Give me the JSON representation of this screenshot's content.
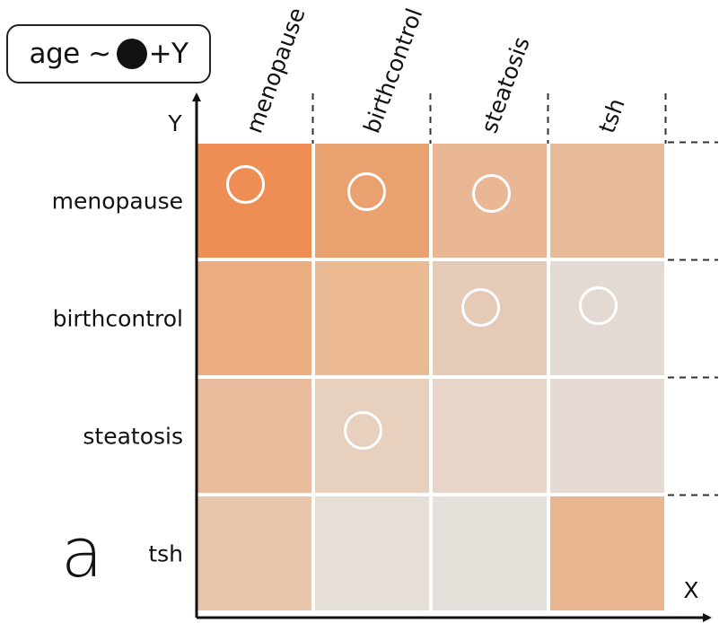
{
  "formula": {
    "prefix": "age ~",
    "suffix": "+Y"
  },
  "panel_label": "a",
  "chart_data": {
    "type": "heatmap",
    "xlabel": "X",
    "ylabel": "Y",
    "columns": [
      "menopause",
      "birthcontrol",
      "steatosis",
      "tsh"
    ],
    "rows": [
      "menopause",
      "birthcontrol",
      "steatosis",
      "tsh"
    ],
    "cell_colors": [
      [
        "#ef8e54",
        "#e8a16f",
        "#e9b794",
        "#e6b999"
      ],
      [
        "#ebac7f",
        "#ebba92",
        "#e5cab8",
        "#e3dad4"
      ],
      [
        "#e8bb9c",
        "#e7d0be",
        "#e6d5c8",
        "#e5dbd4"
      ],
      [
        "#e9c6ab",
        "#e6dfd8",
        "#e6e0db",
        "#eab690"
      ]
    ],
    "markers": [
      {
        "row": "menopause",
        "col": "menopause"
      },
      {
        "row": "menopause",
        "col": "birthcontrol"
      },
      {
        "row": "menopause",
        "col": "steatosis"
      },
      {
        "row": "birthcontrol",
        "col": "steatosis"
      },
      {
        "row": "birthcontrol",
        "col": "tsh"
      },
      {
        "row": "steatosis",
        "col": "birthcontrol"
      }
    ]
  }
}
